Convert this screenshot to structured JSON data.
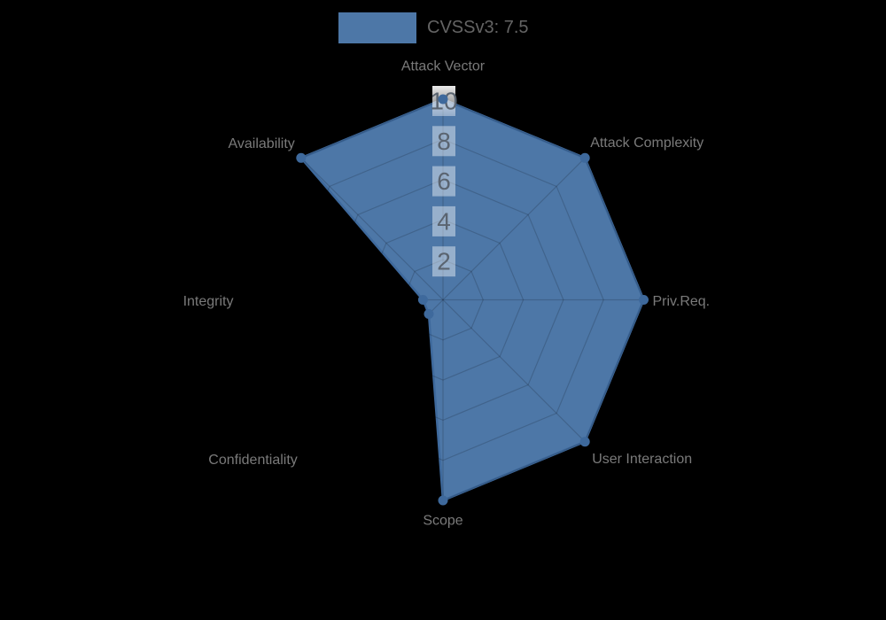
{
  "legend": {
    "label": "CVSSv3: 7.5"
  },
  "colors": {
    "background": "#000000",
    "series_fill": "#4d77a7",
    "series_border": "#3e699c",
    "point": "#3e699c",
    "grid": "rgba(0,0,0,0.16)",
    "tick_backdrop": "rgba(255,255,255,0.42)",
    "tick_text": "#5a6470",
    "axis_label": "#7a7a7a",
    "legend_text": "#646464"
  },
  "chart_data": {
    "type": "radar",
    "title": "",
    "categories": [
      "Attack Vector",
      "Attack Complexity",
      "Priv.Req.",
      "User Interaction",
      "Scope",
      "Confidentiality",
      "Integrity",
      "Availability"
    ],
    "series": [
      {
        "name": "CVSSv3: 7.5",
        "values": [
          10,
          10,
          10,
          10,
          10,
          1,
          1,
          10
        ]
      }
    ],
    "rmax": 10,
    "ticks": [
      2,
      4,
      6,
      8,
      10
    ],
    "grid": true,
    "legend_position": "top"
  }
}
